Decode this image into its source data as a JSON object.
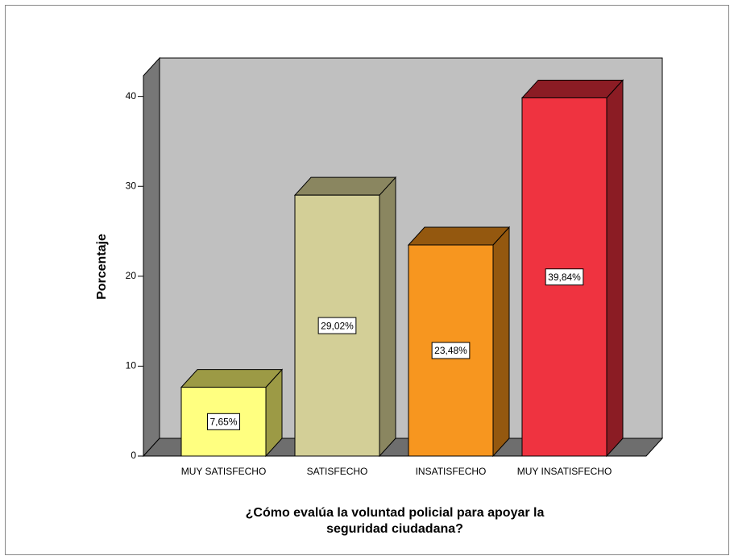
{
  "chart_data": {
    "type": "bar3d",
    "ylabel": "Porcentaje",
    "xlabel": [
      "¿Cómo evalúa la voluntad policial para apoyar la",
      "seguridad ciudadana?"
    ],
    "categories": [
      "MUY SATISFECHO",
      "SATISFECHO",
      "INSATISFECHO",
      "MUY INSATISFECHO"
    ],
    "values": [
      7.65,
      29.02,
      23.48,
      39.84
    ],
    "value_labels": [
      "7,65%",
      "29,02%",
      "23,48%",
      "39,84%"
    ],
    "colors": [
      "#ffff80",
      "#d3cf97",
      "#f7961f",
      "#ef3340"
    ],
    "shade_colors": [
      "#9c9a45",
      "#8a8660",
      "#94580f",
      "#8b1c24"
    ],
    "ylim": [
      0,
      42.3
    ],
    "yticks": [
      0,
      10,
      20,
      30,
      40
    ],
    "grid": false
  }
}
